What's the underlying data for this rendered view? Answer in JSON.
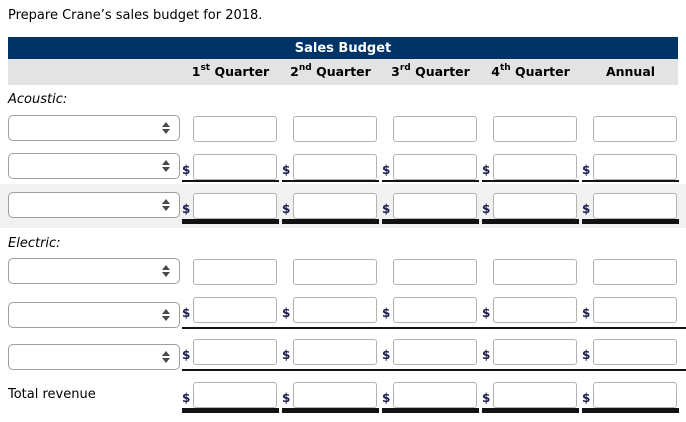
{
  "page": {
    "instruction": "Prepare Crane’s sales budget for 2018."
  },
  "table": {
    "title": "Sales Budget",
    "currency_symbol": "$",
    "colors": {
      "header_bar": "#003366",
      "header_text": "#ffffff",
      "subheader_bg": "#e3e3e3",
      "band_bg": "#f1f1f1"
    },
    "headers": [
      {
        "base": "1",
        "sup": "st",
        "suffix": " Quarter"
      },
      {
        "base": "2",
        "sup": "nd",
        "suffix": " Quarter"
      },
      {
        "base": "3",
        "sup": "rd",
        "suffix": " Quarter"
      },
      {
        "base": "4",
        "sup": "th",
        "suffix": " Quarter"
      },
      {
        "base": "Annual",
        "sup": "",
        "suffix": ""
      }
    ],
    "sections": [
      {
        "label": "Acoustic:"
      },
      {
        "label": "Electric:"
      }
    ],
    "total_label": "Total revenue",
    "select_value": ""
  }
}
